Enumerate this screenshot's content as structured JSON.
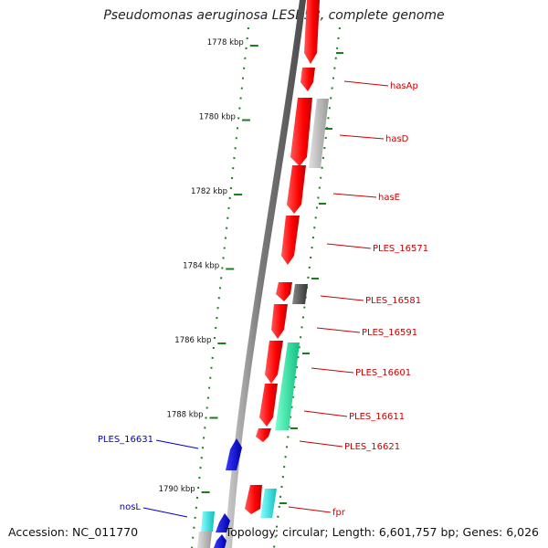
{
  "title": "Pseudomonas aeruginosa LESB58, complete genome",
  "footer": {
    "accession": "Accession: NC_011770",
    "summary": "Topology: circular; Length: 6,601,757 bp; Genes: 6,026"
  },
  "colors": {
    "backbone": "#8c8c8c",
    "tick": "#1a7f1a",
    "gene_red": "#ff0000",
    "gene_grey": "#b8b8b8",
    "gene_darkgrey": "#555555",
    "gene_green": "#22e8a0",
    "gene_blue": "#0000ee",
    "gene_cyan": "#22e6e6",
    "label_red": "#cc0000",
    "label_blue": "#0000cc"
  },
  "ticks": [
    "1778 kbp",
    "1780 kbp",
    "1782 kbp",
    "1784 kbp",
    "1786 kbp",
    "1788 kbp",
    "1790 kbp"
  ],
  "gene_labels": [
    "hasAp",
    "hasD",
    "hasE",
    "PLES_16571",
    "PLES_16581",
    "PLES_16591",
    "PLES_16601",
    "PLES_16611",
    "PLES_16621",
    "fpr",
    "PLES_16631",
    "nosL"
  ]
}
